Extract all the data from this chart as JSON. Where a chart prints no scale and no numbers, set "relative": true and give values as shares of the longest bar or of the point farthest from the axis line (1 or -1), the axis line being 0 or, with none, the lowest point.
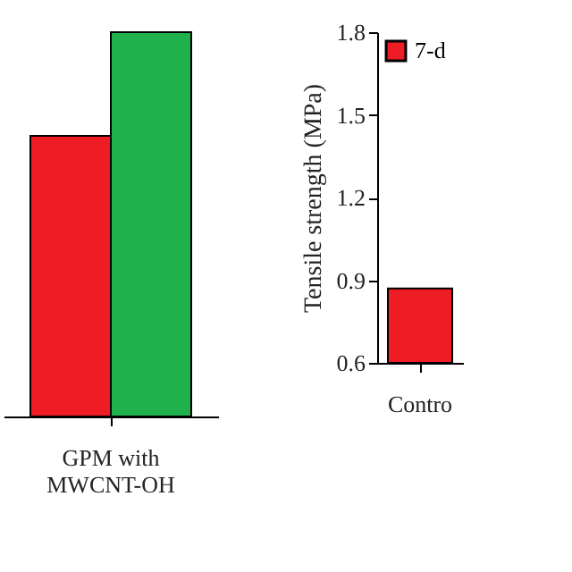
{
  "chart_data": [
    {
      "type": "bar",
      "relative": true,
      "categories": [
        "GPM with\nMWCNT-OH"
      ],
      "series": [
        {
          "color": "#ee1c25",
          "values": [
            0.73
          ]
        },
        {
          "color": "#1fb14c",
          "values": [
            1
          ]
        }
      ],
      "legend": false
    },
    {
      "type": "bar",
      "ylabel": "Tensile strength (MPa)",
      "categories": [
        "Contro"
      ],
      "series": [
        {
          "name": "7-d",
          "color": "#ee1c25",
          "values": [
            0.87
          ]
        }
      ],
      "ylim": [
        0.6,
        1.8
      ],
      "yticks": [
        0.6,
        0.9,
        1.2,
        1.5,
        1.8
      ],
      "legend": "top left"
    }
  ]
}
